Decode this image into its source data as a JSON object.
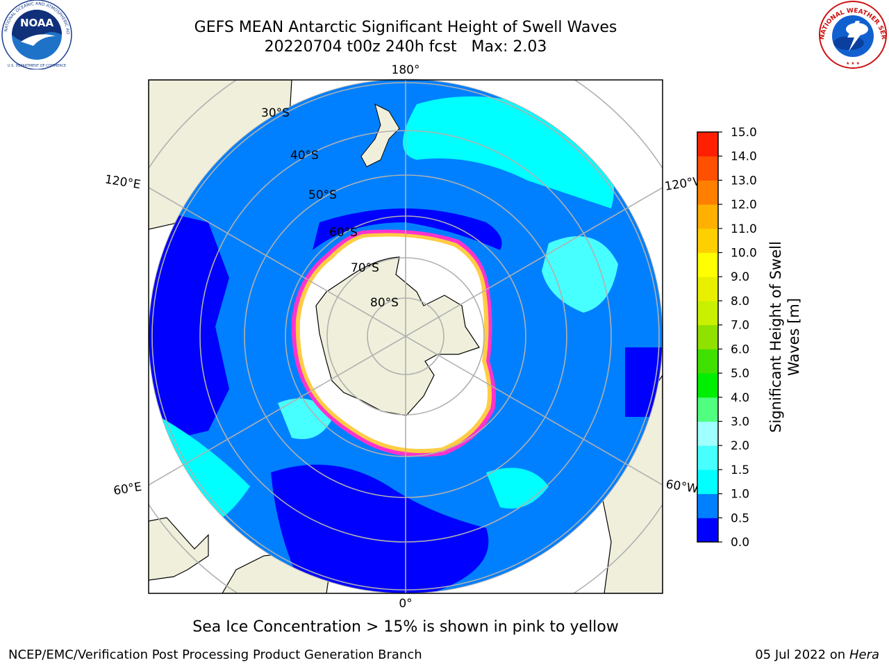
{
  "title": {
    "line1": "GEFS MEAN Antarctic Significant Height of Swell Waves",
    "line2": "20220704 t00z 240h fcst   Max: 2.03"
  },
  "logos": {
    "left": {
      "text": "NOAA",
      "ring_text": "NATIONAL OCEANIC AND ATMOSPHERIC ADMINISTRATION",
      "bottom_text": "U.S. DEPARTMENT OF COMMERCE"
    },
    "right": {
      "ring_text": "NATIONAL WEATHER SERVICE"
    }
  },
  "map": {
    "projection": "south-polar-stereographic",
    "longitude_labels": [
      {
        "id": "lon-180",
        "text": "180°"
      },
      {
        "id": "lon-0",
        "text": "0°"
      },
      {
        "id": "lon-120e",
        "text": "120°E"
      },
      {
        "id": "lon-60e",
        "text": "60°E"
      },
      {
        "id": "lon-120w",
        "text": "120°W"
      },
      {
        "id": "lon-60w",
        "text": "60°W"
      }
    ],
    "latitude_labels": [
      {
        "id": "lat-30",
        "text": "30°S"
      },
      {
        "id": "lat-40",
        "text": "40°S"
      },
      {
        "id": "lat-50",
        "text": "50°S"
      },
      {
        "id": "lat-60",
        "text": "60°S"
      },
      {
        "id": "lat-70",
        "text": "70°S"
      },
      {
        "id": "lat-80",
        "text": "80°S"
      }
    ],
    "colors": {
      "ocean_low": "#0000ff",
      "ocean_mid": "#0080ff",
      "ocean_high": "#00ffff",
      "ocean_peak": "#48ffff",
      "land": "#efefdb",
      "ice": "#ffffff",
      "ice_edge_pink": "#ff33cc",
      "ice_edge_yellow": "#ffcc44",
      "grid": "#b0b0b0"
    }
  },
  "colorbar": {
    "label_line1": "Significant Height of Swell",
    "label_line2": "Waves [m]",
    "ticks": [
      "0.0",
      "0.5",
      "1.0",
      "1.5",
      "2.0",
      "3.0",
      "4.0",
      "5.0",
      "6.0",
      "7.0",
      "8.0",
      "9.0",
      "10.0",
      "11.0",
      "12.0",
      "13.0",
      "14.0",
      "15.0"
    ],
    "colors": [
      "#0000ff",
      "#0080ff",
      "#00ffff",
      "#48ffff",
      "#a0ffff",
      "#50ff80",
      "#00ee00",
      "#40e000",
      "#90e000",
      "#c8f000",
      "#e8f000",
      "#ffff00",
      "#ffd000",
      "#ffb000",
      "#ff8000",
      "#ff5000",
      "#ff2000"
    ]
  },
  "caption": "Sea Ice Concentration > 15% is shown in pink to yellow",
  "footer": {
    "left": "NCEP/EMC/Verification Post Processing Product Generation Branch",
    "right_date": "05 Jul 2022 on ",
    "right_machine": "Hera"
  }
}
